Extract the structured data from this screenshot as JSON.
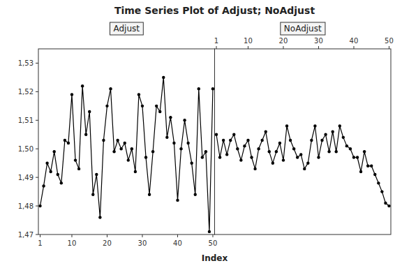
{
  "chart_data": {
    "type": "line",
    "title": "Time Series Plot of Adjust; NoAdjust",
    "x_label": "Index",
    "x": [
      1,
      2,
      3,
      4,
      5,
      6,
      7,
      8,
      9,
      10,
      11,
      12,
      13,
      14,
      15,
      16,
      17,
      18,
      19,
      20,
      21,
      22,
      23,
      24,
      25,
      26,
      27,
      28,
      29,
      30,
      31,
      32,
      33,
      34,
      35,
      36,
      37,
      38,
      39,
      40,
      41,
      42,
      43,
      44,
      45,
      46,
      47,
      48,
      49,
      50
    ],
    "series": [
      {
        "name": "Adjust",
        "values": [
          1.48,
          1.487,
          1.495,
          1.492,
          1.499,
          1.491,
          1.488,
          1.503,
          1.502,
          1.519,
          1.496,
          1.493,
          1.522,
          1.505,
          1.513,
          1.484,
          1.491,
          1.476,
          1.503,
          1.515,
          1.521,
          1.499,
          1.503,
          1.5,
          1.502,
          1.496,
          1.5,
          1.492,
          1.519,
          1.515,
          1.497,
          1.484,
          1.499,
          1.515,
          1.513,
          1.525,
          1.504,
          1.511,
          1.502,
          1.482,
          1.5,
          1.51,
          1.502,
          1.495,
          1.484,
          1.521,
          1.497,
          1.499,
          1.471,
          1.521
        ]
      },
      {
        "name": "NoAdjust",
        "values": [
          1.505,
          1.497,
          1.503,
          1.498,
          1.503,
          1.505,
          1.5,
          1.496,
          1.501,
          1.503,
          1.497,
          1.493,
          1.5,
          1.503,
          1.506,
          1.499,
          1.495,
          1.499,
          1.502,
          1.496,
          1.508,
          1.503,
          1.5,
          1.497,
          1.498,
          1.493,
          1.495,
          1.503,
          1.508,
          1.497,
          1.503,
          1.505,
          1.499,
          1.506,
          1.499,
          1.508,
          1.504,
          1.501,
          1.5,
          1.497,
          1.497,
          1.492,
          1.499,
          1.494,
          1.494,
          1.491,
          1.488,
          1.485,
          1.481,
          1.48
        ]
      }
    ],
    "color": "#000000",
    "marker": "circle",
    "xlim": [
      0.5,
      50.5
    ],
    "xticks": [
      1,
      10,
      20,
      30,
      40,
      50
    ],
    "ylim": [
      1.47,
      1.535
    ],
    "yticks": [
      {
        "value": 1.47,
        "label": "1,47"
      },
      {
        "value": 1.48,
        "label": "1,48"
      },
      {
        "value": 1.49,
        "label": "1,49"
      },
      {
        "value": 1.5,
        "label": "1,50"
      },
      {
        "value": 1.51,
        "label": "1,51"
      },
      {
        "value": 1.52,
        "label": "1,52"
      },
      {
        "value": 1.53,
        "label": "1,53"
      }
    ],
    "grid": false
  }
}
